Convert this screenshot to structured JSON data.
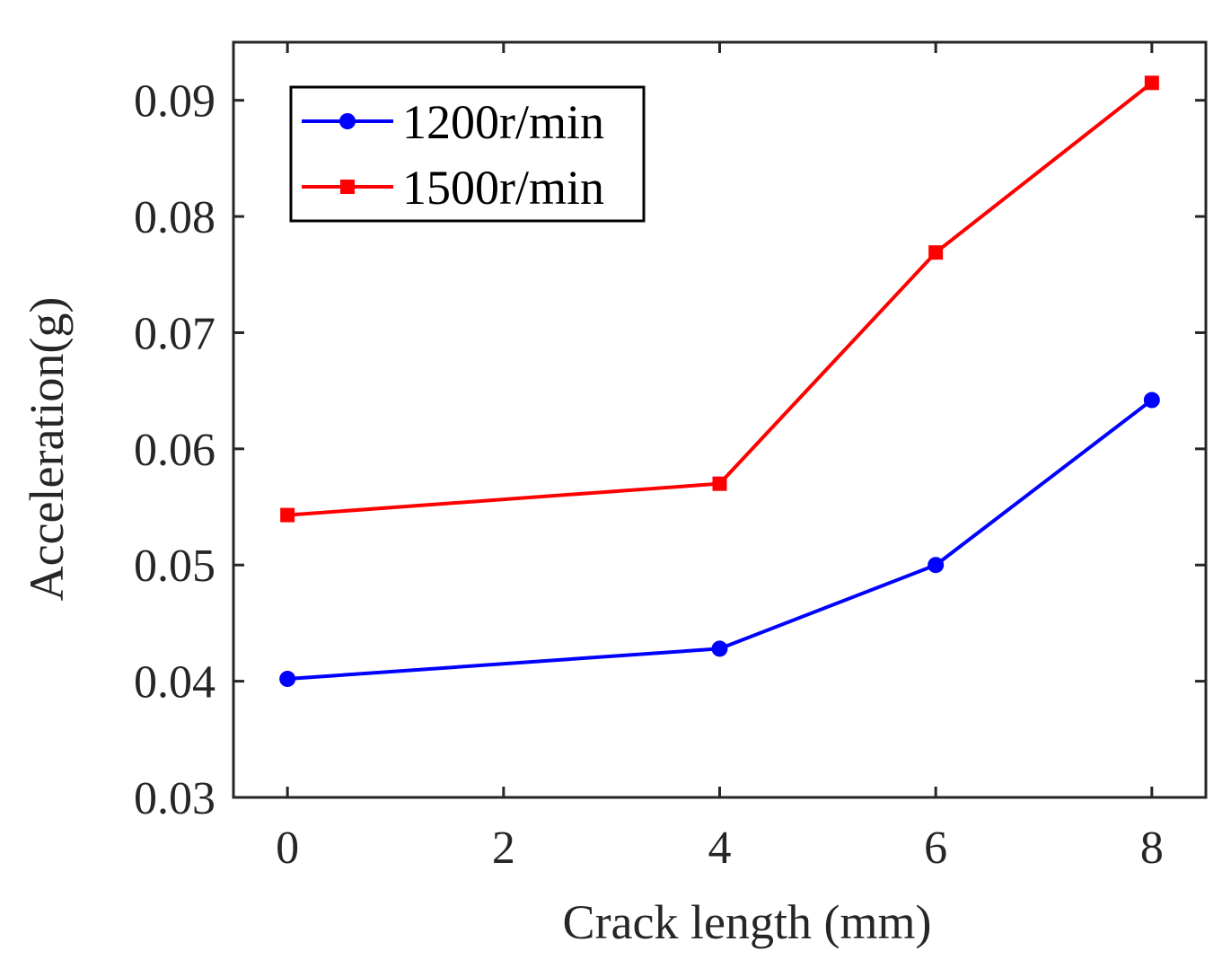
{
  "chart_data": {
    "type": "line",
    "title": "",
    "xlabel": "Crack length (mm)",
    "ylabel": "Acceleration(g)",
    "xlim": [
      -0.5,
      8.5
    ],
    "ylim": [
      0.03,
      0.095
    ],
    "xticks": [
      0,
      2,
      4,
      6,
      8
    ],
    "xtick_labels": [
      "0",
      "2",
      "4",
      "6",
      "8"
    ],
    "yticks": [
      0.03,
      0.04,
      0.05,
      0.06,
      0.07,
      0.08,
      0.09
    ],
    "ytick_labels": [
      "0.03",
      "0.04",
      "0.05",
      "0.06",
      "0.07",
      "0.08",
      "0.09"
    ],
    "grid": false,
    "legend_position": "top-left",
    "series": [
      {
        "name": "1200r/min",
        "color": "#0000ff",
        "marker": "circle",
        "x": [
          0,
          4,
          6,
          8
        ],
        "y": [
          0.0402,
          0.0428,
          0.05,
          0.0642
        ]
      },
      {
        "name": "1500r/min",
        "color": "#ff0000",
        "marker": "square",
        "x": [
          0,
          4,
          6,
          8
        ],
        "y": [
          0.0543,
          0.057,
          0.0769,
          0.0915
        ]
      }
    ]
  }
}
